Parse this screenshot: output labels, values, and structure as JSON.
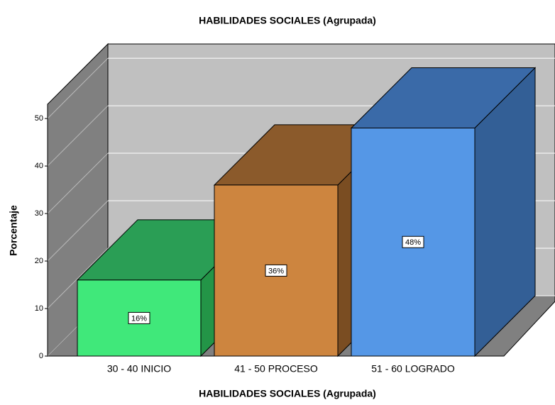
{
  "chart_data": {
    "type": "bar3d",
    "title": "HABILIDADES SOCIALES (Agrupada)",
    "x_label": "HABILIDADES SOCIALES (Agrupada)",
    "y_label": "Porcentaje",
    "categories": [
      "30 - 40 INICIO",
      "41 - 50 PROCESO",
      "51 - 60 LOGRADO"
    ],
    "values": [
      16,
      36,
      48
    ],
    "value_labels": [
      "16%",
      "36%",
      "48%"
    ],
    "colors": [
      "#40e87a",
      "#cd853f",
      "#5597e6"
    ],
    "top_colors": [
      "#2a9e55",
      "#8b5a2b",
      "#3a6aa8"
    ],
    "side_colors": [
      "#239547",
      "#7a4d22",
      "#335f96"
    ],
    "ylim": [
      0,
      53
    ],
    "yticks": [
      0,
      10,
      20,
      30,
      40,
      50
    ],
    "grid": true
  }
}
